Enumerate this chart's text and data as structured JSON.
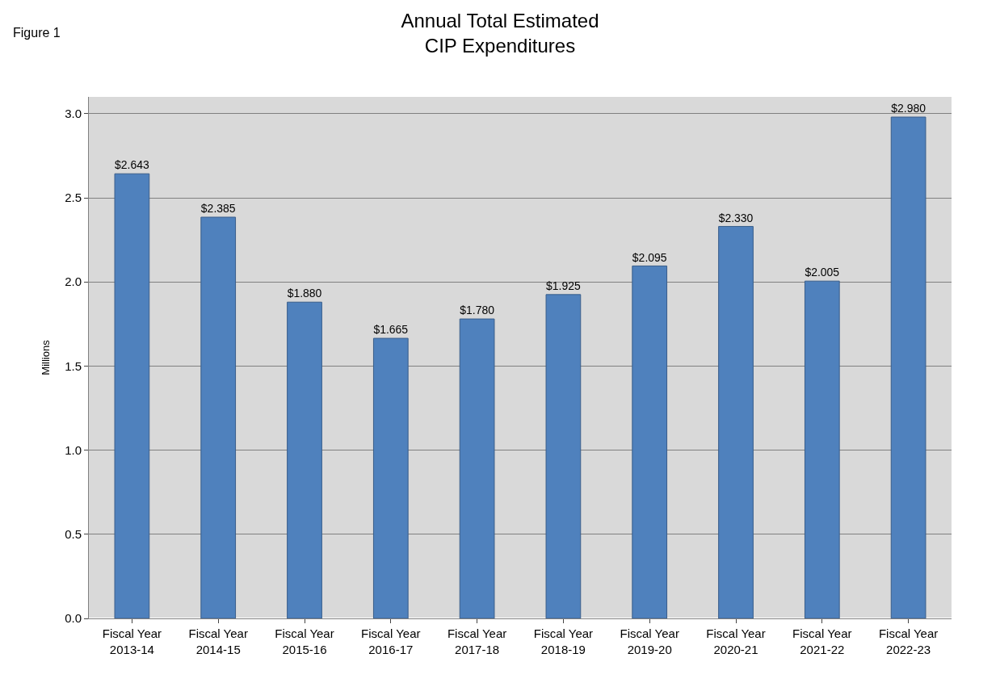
{
  "chart_data": {
    "type": "bar",
    "title": "Annual Total Estimated\nCIP Expenditures",
    "ylabel": "Millions",
    "categories": [
      "Fiscal Year\n2013-14",
      "Fiscal Year\n2014-15",
      "Fiscal Year\n2015-16",
      "Fiscal Year\n2016-17",
      "Fiscal Year\n2017-18",
      "Fiscal Year\n2018-19",
      "Fiscal Year\n2019-20",
      "Fiscal Year\n2020-21",
      "Fiscal Year\n2021-22",
      "Fiscal Year\n2022-23"
    ],
    "values": [
      2.643,
      2.385,
      1.88,
      1.665,
      1.78,
      1.925,
      2.095,
      2.33,
      2.005,
      2.98
    ],
    "value_labels": [
      "$2.643",
      "$2.385",
      "$1.880",
      "$1.665",
      "$1.780",
      "$1.925",
      "$2.095",
      "$2.330",
      "$2.005",
      "$2.980"
    ],
    "color": "#4f81bd",
    "ylim": [
      0,
      3.1
    ],
    "yticks": [
      {
        "value": 0,
        "label": "0.0"
      },
      {
        "value": 0.5,
        "label": "0.5"
      },
      {
        "value": 1,
        "label": "1.0"
      },
      {
        "value": 1.5,
        "label": "1.5"
      },
      {
        "value": 2,
        "label": "2.0"
      },
      {
        "value": 2.5,
        "label": "2.5"
      },
      {
        "value": 3,
        "label": "3.0"
      }
    ],
    "grid": "y",
    "legend": false,
    "annotations": [
      "Figure 1"
    ]
  }
}
